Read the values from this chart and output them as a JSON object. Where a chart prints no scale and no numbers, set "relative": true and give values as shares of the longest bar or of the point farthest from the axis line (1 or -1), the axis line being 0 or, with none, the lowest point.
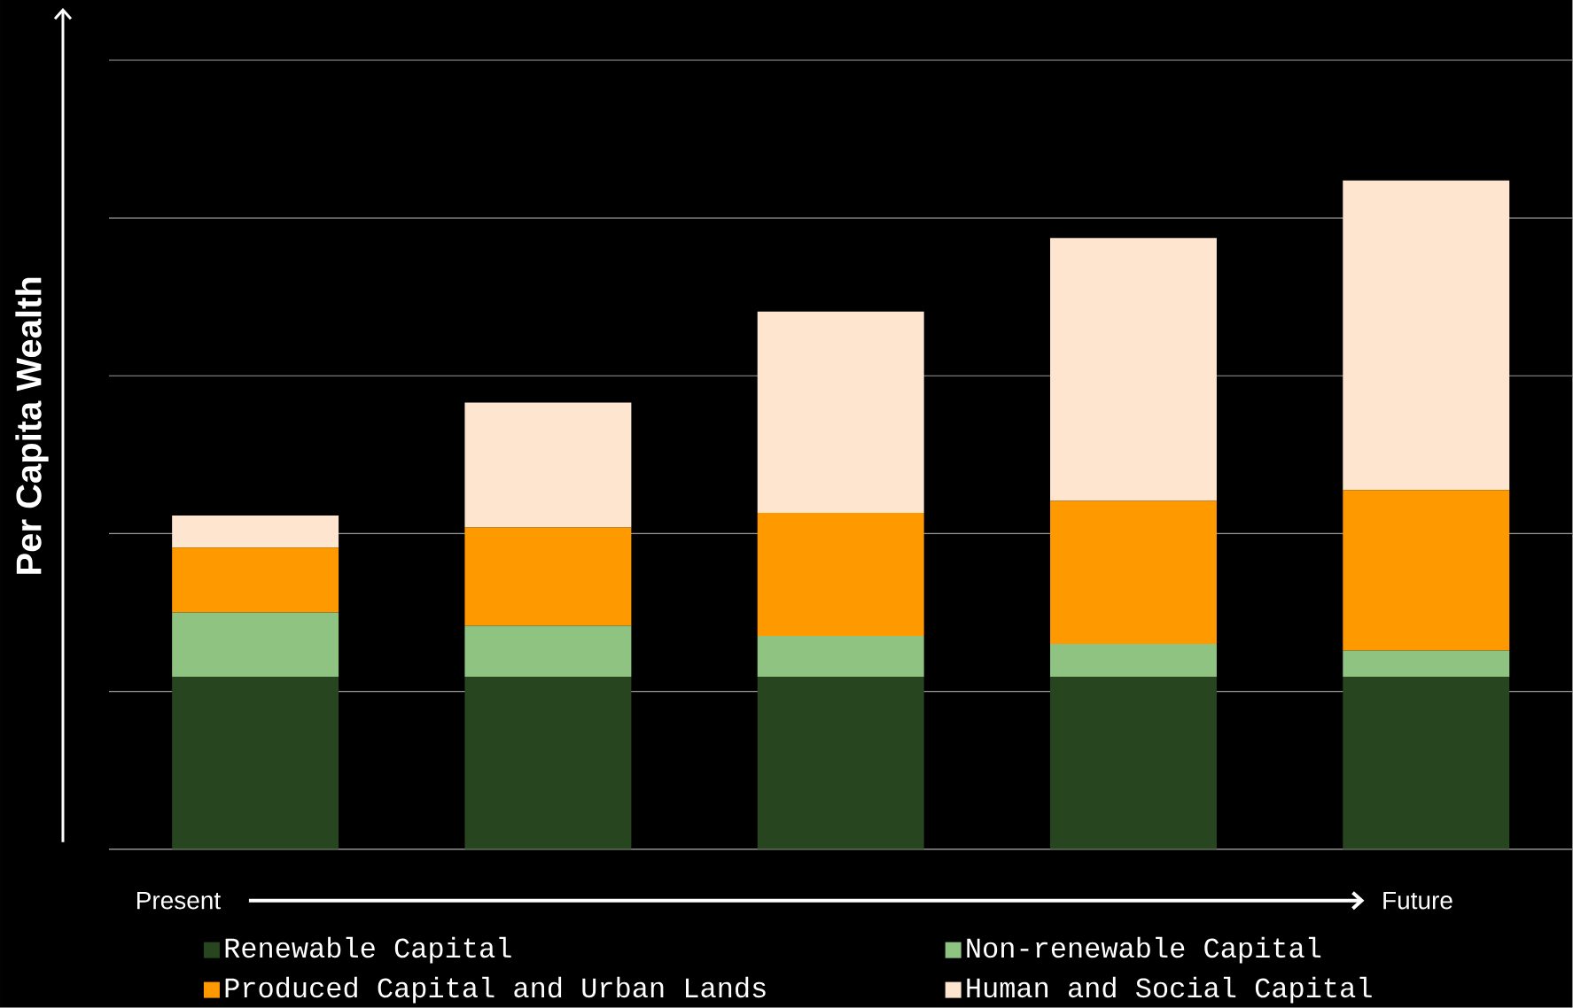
{
  "chart_data": {
    "type": "bar",
    "stacked": true,
    "relative": true,
    "ylabel": "Per Capita Wealth",
    "annotations": [
      "Present",
      "Future"
    ],
    "categories": [
      null,
      null,
      null,
      null,
      null
    ],
    "grid": "y",
    "legend": "bottom",
    "series": [
      {
        "name": "Renewable Capital",
        "color": "#27451f",
        "values": [
          0.258,
          0.258,
          0.258,
          0.258,
          0.258
        ]
      },
      {
        "name": "Non-renewable Capital",
        "color": "#8fc382",
        "values": [
          0.096,
          0.076,
          0.061,
          0.049,
          0.039
        ]
      },
      {
        "name": "Produced Capital and Urban Lands",
        "color": "#ff9900",
        "values": [
          0.097,
          0.147,
          0.184,
          0.214,
          0.24
        ]
      },
      {
        "name": "Human and Social Capital",
        "color": "#fde5cf",
        "values": [
          0.048,
          0.187,
          0.301,
          0.393,
          0.463
        ]
      }
    ]
  }
}
